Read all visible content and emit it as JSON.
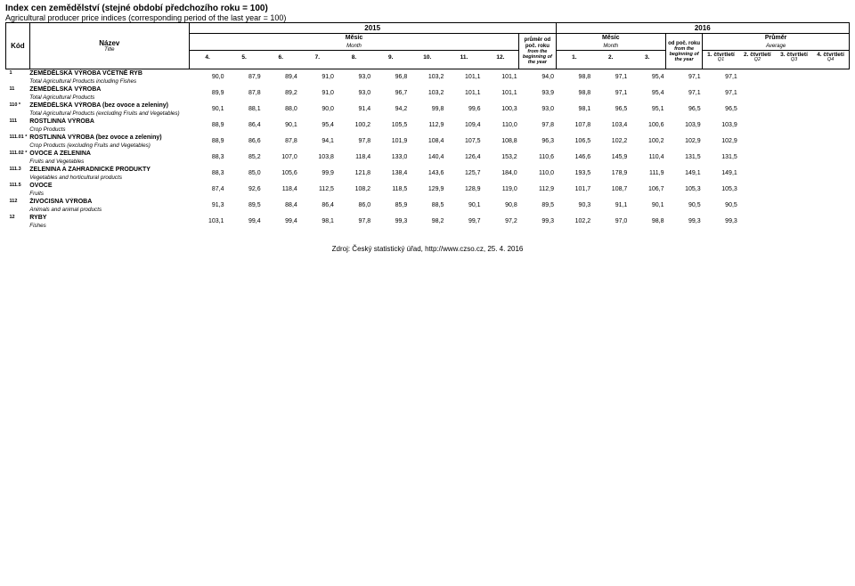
{
  "title_cz": "Index cen zemědělství (stejné období předchozího roku = 100)",
  "title_en": "Agricultural producer price indices (corresponding period of the last year = 100)",
  "footer": "Zdroj: Český statistický úřad, http://www.czso.cz, 25. 4. 2016",
  "header": {
    "kod": "Kód",
    "name_cz": "Název",
    "name_en": "Title",
    "year1": "2015",
    "year2": "2016",
    "month_cz": "Měsíc",
    "month_en": "Month",
    "avg_cz": "Průměr",
    "avg_en": "Average",
    "beg_cz": "průměr od poč. roku",
    "beg_en": "from the beginning of the year",
    "beg2_cz": "od poč. roku",
    "beg2_en": "from the beginning of the year",
    "cols2015": [
      "4.",
      "5.",
      "6.",
      "7.",
      "8.",
      "9.",
      "10.",
      "11.",
      "12."
    ],
    "cols2016m": [
      "1.",
      "2.",
      "3."
    ],
    "q": [
      {
        "cz": "1. čtvrtletí",
        "en": "Q1"
      },
      {
        "cz": "2. čtvrtletí",
        "en": "Q2"
      },
      {
        "cz": "3. čtvrtletí",
        "en": "Q3"
      },
      {
        "cz": "4. čtvrtletí",
        "en": "Q4"
      }
    ]
  },
  "rows": [
    {
      "kod": "1",
      "cz": "ZEMĚDĚLSKÁ VÝROBA VČETNĚ RYB",
      "en": "Total Agricultural Products including Fishes",
      "v": [
        "90,0",
        "87,9",
        "89,4",
        "91,0",
        "93,0",
        "96,8",
        "103,2",
        "101,1",
        "101,1",
        "94,0",
        "98,8",
        "97,1",
        "95,4",
        "97,1",
        "97,1",
        "",
        "",
        ""
      ]
    },
    {
      "kod": "11",
      "cz": "ZEMĚDĚLSKÁ VÝROBA",
      "en": "Total Agricultural Products",
      "v": [
        "89,9",
        "87,8",
        "89,2",
        "91,0",
        "93,0",
        "96,7",
        "103,2",
        "101,1",
        "101,1",
        "93,9",
        "98,8",
        "97,1",
        "95,4",
        "97,1",
        "97,1",
        "",
        "",
        ""
      ]
    },
    {
      "kod": "110 *",
      "cz": "ZEMĚDĚLSKÁ VÝROBA (bez ovoce a zeleniny)",
      "en": "Total Agricultural Products (excluding Fruits and Vegetables)",
      "v": [
        "90,1",
        "88,1",
        "88,0",
        "90,0",
        "91,4",
        "94,2",
        "99,8",
        "99,6",
        "100,3",
        "93,0",
        "98,1",
        "96,5",
        "95,1",
        "96,5",
        "96,5",
        "",
        "",
        ""
      ]
    },
    {
      "kod": "111",
      "cz": "ROSTLINNÁ VÝROBA",
      "en": "Crop Products",
      "v": [
        "88,9",
        "86,4",
        "90,1",
        "95,4",
        "100,2",
        "105,5",
        "112,9",
        "109,4",
        "110,0",
        "97,8",
        "107,8",
        "103,4",
        "100,6",
        "103,9",
        "103,9",
        "",
        "",
        ""
      ]
    },
    {
      "kod": "111.01 *",
      "cz": "ROSTLINNÁ VÝROBA (bez ovoce a zeleniny)",
      "en": "Crop Products (excluding Fruits and Vegetables)",
      "v": [
        "88,9",
        "86,6",
        "87,8",
        "94,1",
        "97,8",
        "101,9",
        "108,4",
        "107,5",
        "108,8",
        "96,3",
        "106,5",
        "102,2",
        "100,2",
        "102,9",
        "102,9",
        "",
        "",
        ""
      ]
    },
    {
      "kod": "111.02 *",
      "cz": "OVOCE A ZELENINA",
      "en": "Fruits and Vegetables",
      "v": [
        "88,3",
        "85,2",
        "107,0",
        "103,8",
        "118,4",
        "133,0",
        "140,4",
        "126,4",
        "153,2",
        "110,6",
        "146,6",
        "145,9",
        "110,4",
        "131,5",
        "131,5",
        "",
        "",
        ""
      ]
    },
    {
      "kod": "111.3",
      "cz": "ZELENINA A ZAHRADNICKÉ PRODUKTY",
      "en": "Vegetables and horticultural products",
      "v": [
        "88,3",
        "85,0",
        "105,6",
        "99,9",
        "121,8",
        "138,4",
        "143,6",
        "125,7",
        "184,0",
        "110,0",
        "193,5",
        "178,9",
        "111,9",
        "149,1",
        "149,1",
        "",
        "",
        ""
      ]
    },
    {
      "kod": "111.5",
      "cz": "OVOCE",
      "en": "Fruits",
      "v": [
        "87,4",
        "92,6",
        "118,4",
        "112,5",
        "108,2",
        "118,5",
        "129,9",
        "128,9",
        "119,0",
        "112,9",
        "101,7",
        "108,7",
        "106,7",
        "105,3",
        "105,3",
        "",
        "",
        ""
      ]
    },
    {
      "kod": "112",
      "cz": "ŽIVOČIŠNÁ VÝROBA",
      "en": "Animals and animal products",
      "v": [
        "91,3",
        "89,5",
        "88,4",
        "86,4",
        "86,0",
        "85,9",
        "88,5",
        "90,1",
        "90,8",
        "89,5",
        "90,3",
        "91,1",
        "90,1",
        "90,5",
        "90,5",
        "",
        "",
        ""
      ]
    },
    {
      "kod": "12",
      "cz": "RYBY",
      "en": "Fishes",
      "v": [
        "103,1",
        "99,4",
        "99,4",
        "98,1",
        "97,8",
        "99,3",
        "98,2",
        "99,7",
        "97,2",
        "99,3",
        "102,2",
        "97,0",
        "98,8",
        "99,3",
        "99,3",
        "",
        "",
        ""
      ]
    }
  ]
}
